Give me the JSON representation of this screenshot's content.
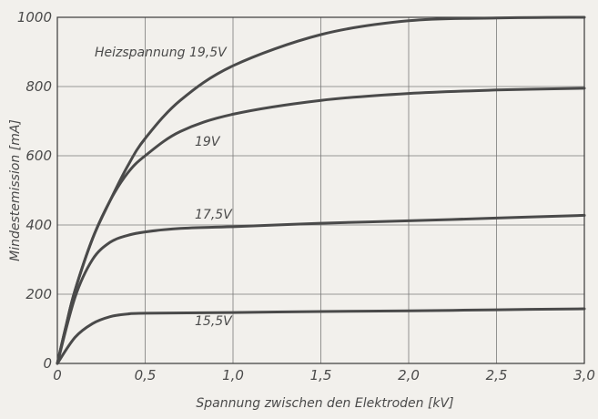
{
  "chart_data": {
    "type": "line",
    "xlabel": "Spannung zwischen den Elektroden [kV]",
    "ylabel": "Mindestemission [mA]",
    "xlim": [
      0,
      3.0
    ],
    "ylim": [
      0,
      1000
    ],
    "x_ticks": [
      0,
      0.5,
      1.0,
      1.5,
      2.0,
      2.5,
      3.0
    ],
    "x_tick_labels": [
      "0",
      "0,5",
      "1,0",
      "1,5",
      "2,0",
      "2,5",
      "3,0"
    ],
    "y_ticks": [
      0,
      200,
      400,
      600,
      800,
      1000
    ],
    "y_tick_labels": [
      "0",
      "200",
      "400",
      "600",
      "800",
      "1000"
    ],
    "grid": true,
    "legend": "none",
    "line_color": "#4a4a4a",
    "series": [
      {
        "name": "Heizspannung 19,5V",
        "x": [
          0,
          0.05,
          0.1,
          0.2,
          0.3,
          0.4,
          0.5,
          0.7,
          1.0,
          1.5,
          2.0,
          2.5,
          3.0
        ],
        "y": [
          0,
          110,
          210,
          360,
          470,
          570,
          650,
          760,
          860,
          950,
          990,
          998,
          1000
        ]
      },
      {
        "name": "19V",
        "x": [
          0,
          0.05,
          0.1,
          0.2,
          0.3,
          0.4,
          0.5,
          0.7,
          1.0,
          1.5,
          2.0,
          2.5,
          3.0
        ],
        "y": [
          0,
          110,
          210,
          360,
          470,
          550,
          600,
          670,
          720,
          760,
          780,
          790,
          795
        ]
      },
      {
        "name": "17,5V",
        "x": [
          0,
          0.1,
          0.2,
          0.3,
          0.4,
          0.5,
          0.7,
          1.0,
          1.5,
          2.0,
          2.5,
          3.0
        ],
        "y": [
          0,
          190,
          300,
          350,
          370,
          380,
          390,
          395,
          405,
          412,
          420,
          428
        ]
      },
      {
        "name": "15,5V",
        "x": [
          0,
          0.1,
          0.2,
          0.3,
          0.4,
          0.5,
          1.0,
          1.5,
          2.0,
          2.5,
          3.0
        ],
        "y": [
          0,
          75,
          115,
          135,
          143,
          145,
          147,
          150,
          152,
          155,
          158
        ]
      }
    ]
  }
}
